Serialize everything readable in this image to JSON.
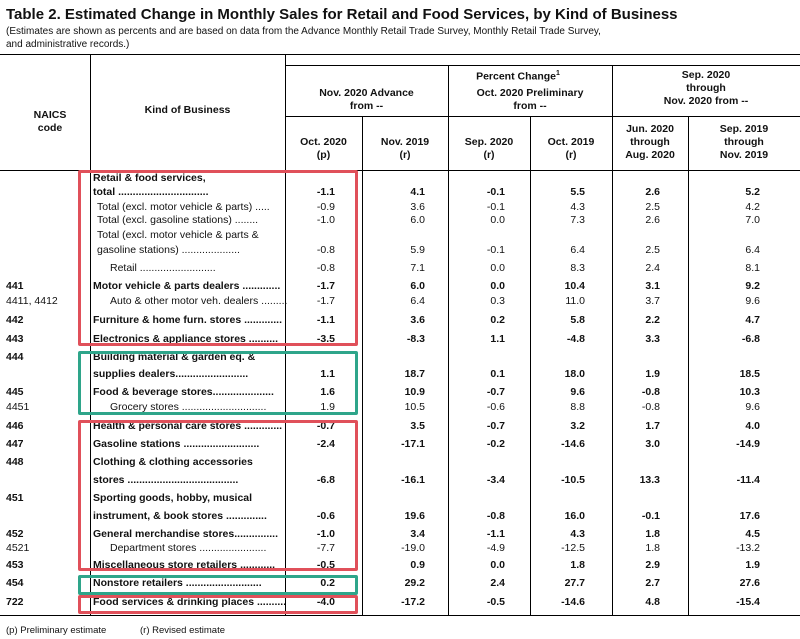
{
  "title": "Table 2.  Estimated Change in Monthly Sales for Retail and Food Services, by Kind of Business",
  "subtitle": "(Estimates are shown as percents and are based on data from the Advance Monthly Retail Trade Survey,  Monthly Retail Trade Survey,\nand administrative records.)",
  "headers": {
    "naics": "NAICS\ncode",
    "kind": "Kind of Business",
    "percent_change": "Percent Change",
    "percent_change_sup": "1",
    "group1": "Nov. 2020 Advance\nfrom --",
    "group2": "Oct. 2020 Preliminary\nfrom --",
    "group3": "Sep. 2020\nthrough\nNov. 2020 from --",
    "col1": "Oct. 2020\n(p)",
    "col2": "Nov. 2019\n(r)",
    "col3": "Sep. 2020\n(r)",
    "col4": "Oct. 2019\n(r)",
    "col5": "Jun. 2020\nthrough\nAug. 2020",
    "col6": "Sep. 2019\nthrough\nNov. 2019"
  },
  "rows": [
    {
      "code": "",
      "kind": "Retail & food services,",
      "vals": [
        "",
        "",
        "",
        "",
        "",
        ""
      ]
    },
    {
      "code": "",
      "kind": "total ...............................",
      "vals": [
        "-1.1",
        "4.1",
        "-0.1",
        "5.5",
        "2.6",
        "5.2"
      ]
    },
    {
      "code": "",
      "kind": "Total (excl. motor vehicle & parts) .....",
      "vals": [
        "-0.9",
        "3.6",
        "-0.1",
        "4.3",
        "2.5",
        "4.2"
      ]
    },
    {
      "code": "",
      "kind": "Total (excl. gasoline stations) ........",
      "vals": [
        "-1.0",
        "6.0",
        "0.0",
        "7.3",
        "2.6",
        "7.0"
      ]
    },
    {
      "code": "",
      "kind": "Total (excl. motor vehicle & parts &",
      "vals": [
        "",
        "",
        "",
        "",
        "",
        ""
      ]
    },
    {
      "code": "",
      "kind": "gasoline stations) ....................",
      "vals": [
        "-0.8",
        "5.9",
        "-0.1",
        "6.4",
        "2.5",
        "6.4"
      ]
    },
    {
      "code": "",
      "kind": "Retail ..........................",
      "vals": [
        "-0.8",
        "7.1",
        "0.0",
        "8.3",
        "2.4",
        "8.1"
      ]
    },
    {
      "code": "441",
      "kind": "Motor vehicle & parts dealers .............",
      "vals": [
        "-1.7",
        "6.0",
        "0.0",
        "10.4",
        "3.1",
        "9.2"
      ]
    },
    {
      "code": "4411, 4412",
      "kind": "Auto & other motor veh. dealers .........",
      "vals": [
        "-1.7",
        "6.4",
        "0.3",
        "11.0",
        "3.7",
        "9.6"
      ]
    },
    {
      "code": "442",
      "kind": "Furniture & home furn. stores .............",
      "vals": [
        "-1.1",
        "3.6",
        "0.2",
        "5.8",
        "2.2",
        "4.7"
      ]
    },
    {
      "code": "443",
      "kind": "Electronics & appliance stores ..........",
      "vals": [
        "-3.5",
        "-8.3",
        "1.1",
        "-4.8",
        "3.3",
        "-6.8"
      ]
    },
    {
      "code": "444",
      "kind": "Building material & garden eq. &",
      "vals": [
        "",
        "",
        "",
        "",
        "",
        ""
      ]
    },
    {
      "code": "",
      "kind": "supplies dealers.........................",
      "vals": [
        "1.1",
        "18.7",
        "0.1",
        "18.0",
        "1.9",
        "18.5"
      ]
    },
    {
      "code": "445",
      "kind": "Food & beverage stores.....................",
      "vals": [
        "1.6",
        "10.9",
        "-0.7",
        "9.6",
        "-0.8",
        "10.3"
      ]
    },
    {
      "code": "4451",
      "kind": "Grocery stores .............................",
      "vals": [
        "1.9",
        "10.5",
        "-0.6",
        "8.8",
        "-0.8",
        "9.6"
      ]
    },
    {
      "code": "446",
      "kind": "Health & personal care stores .............",
      "vals": [
        "-0.7",
        "3.5",
        "-0.7",
        "3.2",
        "1.7",
        "4.0"
      ]
    },
    {
      "code": "447",
      "kind": "Gasoline stations ..........................",
      "vals": [
        "-2.4",
        "-17.1",
        "-0.2",
        "-14.6",
        "3.0",
        "-14.9"
      ]
    },
    {
      "code": "448",
      "kind": "Clothing & clothing accessories",
      "vals": [
        "",
        "",
        "",
        "",
        "",
        ""
      ]
    },
    {
      "code": "",
      "kind": "stores ......................................",
      "vals": [
        "-6.8",
        "-16.1",
        "-3.4",
        "-10.5",
        "13.3",
        "-11.4"
      ]
    },
    {
      "code": "451",
      "kind": "Sporting goods, hobby, musical",
      "vals": [
        "",
        "",
        "",
        "",
        "",
        ""
      ]
    },
    {
      "code": "",
      "kind": "instrument, & book stores ..............",
      "vals": [
        "-0.6",
        "19.6",
        "-0.8",
        "16.0",
        "-0.1",
        "17.6"
      ]
    },
    {
      "code": "452",
      "kind": "General merchandise stores...............",
      "vals": [
        "-1.0",
        "3.4",
        "-1.1",
        "4.3",
        "1.8",
        "4.5"
      ]
    },
    {
      "code": "4521",
      "kind": "Department stores .......................",
      "vals": [
        "-7.7",
        "-19.0",
        "-4.9",
        "-12.5",
        "1.8",
        "-13.2"
      ]
    },
    {
      "code": "453",
      "kind": "Miscellaneous store retailers ............",
      "vals": [
        "-0.5",
        "0.9",
        "0.0",
        "1.8",
        "2.9",
        "1.9"
      ]
    },
    {
      "code": "454",
      "kind": "Nonstore retailers ..........................",
      "vals": [
        "0.2",
        "29.2",
        "2.4",
        "27.7",
        "2.7",
        "27.6"
      ]
    },
    {
      "code": "722",
      "kind": "Food services & drinking places ............",
      "vals": [
        "-4.0",
        "-17.2",
        "-0.5",
        "-14.6",
        "4.8",
        "-15.4"
      ]
    }
  ],
  "footnotes": {
    "p": "(p)  Preliminary estimate",
    "r": "(r)  Revised estimate"
  },
  "colors": {
    "highlight_red": "#e0505a",
    "highlight_teal": "#2ea58a"
  }
}
